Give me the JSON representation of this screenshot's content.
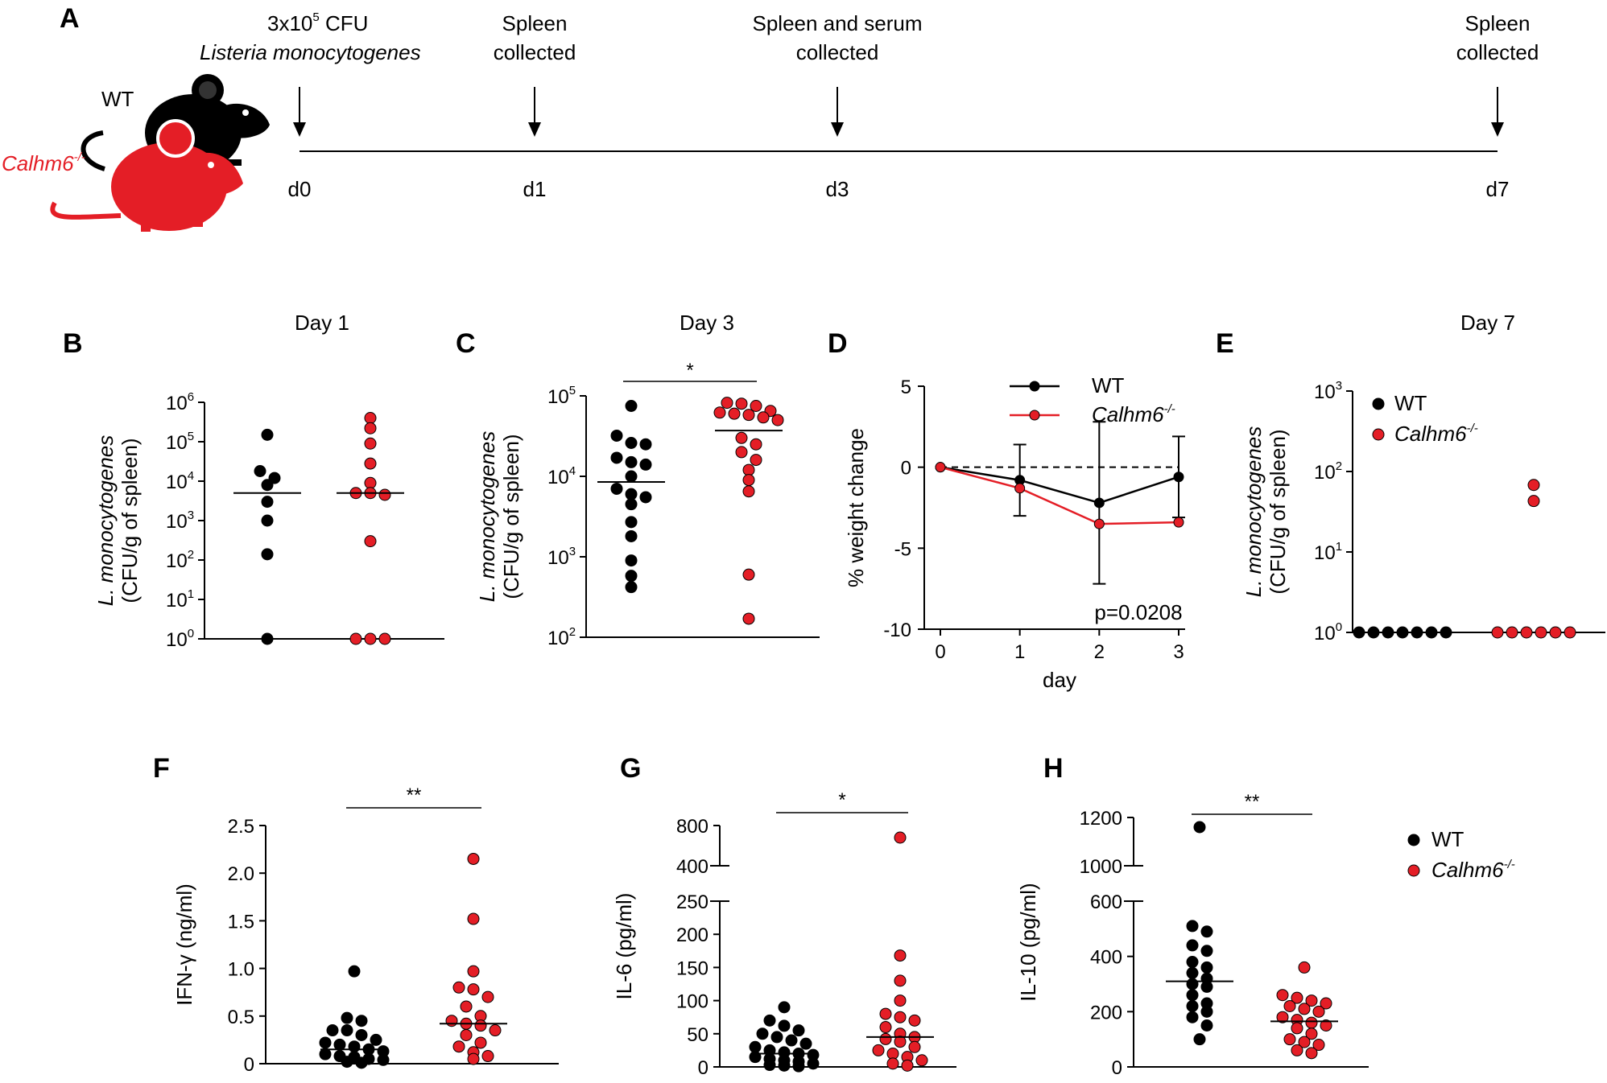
{
  "colors": {
    "wt": "#000000",
    "ko": "#e41e26",
    "dot_outline": "#000000"
  },
  "panel_a": {
    "letter": "A",
    "wt_label": "WT",
    "ko_label": "Calhm6",
    "ko_sup": "-/-",
    "mouse_icons": [
      "mouse-black-icon",
      "mouse-red-icon"
    ],
    "inoculum_line1_base": "3x10",
    "inoculum_line1_sup": "5",
    "inoculum_line1_rest": " CFU",
    "inoculum_line2": "Listeria monocytogenes",
    "events": [
      {
        "day": "d0",
        "label_lines": []
      },
      {
        "day": "d1",
        "label_lines": [
          "Spleen",
          "collected"
        ]
      },
      {
        "day": "d3",
        "label_lines": [
          "Spleen and serum",
          "collected"
        ]
      },
      {
        "day": "d7",
        "label_lines": [
          "Spleen",
          "collected"
        ]
      }
    ]
  },
  "chart_data": [
    {
      "panel": "B",
      "type": "scatter",
      "title": "Day 1",
      "ylabel_line1": "L. monocytogenes",
      "ylabel_line2": "(CFU/g of spleen)",
      "yscale": "log",
      "ylim": [
        1,
        1000000
      ],
      "yticks": [
        {
          "base": "10",
          "exp": "0"
        },
        {
          "base": "10",
          "exp": "1"
        },
        {
          "base": "10",
          "exp": "2"
        },
        {
          "base": "10",
          "exp": "3"
        },
        {
          "base": "10",
          "exp": "4"
        },
        {
          "base": "10",
          "exp": "5"
        },
        {
          "base": "10",
          "exp": "6"
        }
      ],
      "groups": [
        {
          "name": "WT",
          "values": [
            150000,
            18000,
            12000,
            8000,
            3000,
            1000,
            140,
            1
          ],
          "median": 5000
        },
        {
          "name": "Calhm6-/-",
          "values": [
            400000,
            220000,
            90000,
            28000,
            9000,
            5000,
            5000,
            4500,
            300,
            1,
            1,
            1
          ],
          "median": 5000
        }
      ]
    },
    {
      "panel": "C",
      "type": "scatter",
      "title": "Day 3",
      "ylabel_line1": "L. monocytogenes",
      "ylabel_line2": "(CFU/g of spleen)",
      "yscale": "log",
      "ylim": [
        100,
        100000
      ],
      "yticks": [
        {
          "base": "10",
          "exp": "2"
        },
        {
          "base": "10",
          "exp": "3"
        },
        {
          "base": "10",
          "exp": "4"
        },
        {
          "base": "10",
          "exp": "5"
        }
      ],
      "significance": "*",
      "groups": [
        {
          "name": "WT",
          "values": [
            75000,
            32000,
            26000,
            25000,
            17000,
            15000,
            14000,
            10000,
            7000,
            6000,
            5500,
            4500,
            2700,
            1800,
            900,
            580,
            420
          ],
          "median": 8500
        },
        {
          "name": "Calhm6-/-",
          "values": [
            82000,
            80000,
            75000,
            65000,
            62000,
            60000,
            58000,
            54000,
            50000,
            30000,
            25000,
            20000,
            16000,
            12000,
            9000,
            6500,
            600,
            170
          ],
          "median": 37000
        }
      ]
    },
    {
      "panel": "D",
      "type": "line",
      "xlabel": "day",
      "ylabel": "% weight change",
      "xlim": [
        0,
        3
      ],
      "ylim": [
        -10,
        5
      ],
      "x": [
        0,
        1,
        2,
        3
      ],
      "yticks": [
        "-10",
        "-5",
        "0",
        "5"
      ],
      "xticks": [
        "0",
        "1",
        "2",
        "3"
      ],
      "legend": "top-center",
      "annotation": "p=0.0208",
      "series": [
        {
          "name": "WT",
          "values": [
            0,
            -0.8,
            -2.2,
            -0.6
          ],
          "error": [
            0,
            2.2,
            5.0,
            2.5
          ]
        },
        {
          "name": "Calhm6",
          "name_sup": "-/-",
          "values": [
            0,
            -1.3,
            -3.5,
            -3.4
          ],
          "error": [
            0,
            0,
            0,
            0
          ]
        }
      ]
    },
    {
      "panel": "E",
      "type": "scatter",
      "title": "Day 7",
      "ylabel_line1": "L. monocytogenes",
      "ylabel_line2": "(CFU/g of spleen)",
      "yscale": "log",
      "ylim": [
        1,
        1000
      ],
      "yticks": [
        {
          "base": "10",
          "exp": "0"
        },
        {
          "base": "10",
          "exp": "1"
        },
        {
          "base": "10",
          "exp": "2"
        },
        {
          "base": "10",
          "exp": "3"
        }
      ],
      "legend": "top-left",
      "legend_entries": [
        {
          "name": "WT",
          "sup": ""
        },
        {
          "name": "Calhm6",
          "sup": "-/-"
        }
      ],
      "groups": [
        {
          "name": "WT",
          "values": [
            1,
            1,
            1,
            1,
            1,
            1,
            1
          ]
        },
        {
          "name": "Calhm6-/-",
          "values": [
            68,
            43,
            1,
            1,
            1,
            1,
            1,
            1
          ]
        }
      ]
    },
    {
      "panel": "F",
      "type": "scatter",
      "ylabel": "IFN-γ (ng/ml)",
      "ylim": [
        0,
        2.5
      ],
      "yticks": [
        "0",
        "0.5",
        "1.0",
        "1.5",
        "2.0",
        "2.5"
      ],
      "significance": "**",
      "groups": [
        {
          "name": "WT",
          "values": [
            0.97,
            0.48,
            0.45,
            0.35,
            0.35,
            0.3,
            0.25,
            0.22,
            0.2,
            0.18,
            0.15,
            0.13,
            0.1,
            0.08,
            0.07,
            0.05,
            0.04,
            0.02,
            0.01
          ],
          "median": 0.15
        },
        {
          "name": "Calhm6-/-",
          "values": [
            2.15,
            1.52,
            0.97,
            0.8,
            0.78,
            0.7,
            0.6,
            0.5,
            0.45,
            0.42,
            0.4,
            0.35,
            0.3,
            0.22,
            0.18,
            0.12,
            0.08,
            0.05
          ],
          "median": 0.42
        }
      ]
    },
    {
      "panel": "G",
      "type": "scatter",
      "ylabel": "IL-6 (pg/ml)",
      "ylim": [
        0,
        800
      ],
      "axis_break": [
        250,
        400
      ],
      "yticks": [
        "0",
        "50",
        "100",
        "150",
        "200",
        "250",
        "400",
        "800"
      ],
      "significance": "*",
      "groups": [
        {
          "name": "WT",
          "values": [
            90,
            70,
            62,
            55,
            50,
            45,
            40,
            35,
            30,
            25,
            22,
            20,
            18,
            15,
            12,
            10,
            8,
            5,
            3,
            2,
            1
          ],
          "median": 20
        },
        {
          "name": "Calhm6-/-",
          "values": [
            680,
            168,
            130,
            100,
            80,
            75,
            70,
            60,
            50,
            45,
            42,
            38,
            30,
            25,
            20,
            15,
            10,
            5,
            2
          ],
          "median": 45
        }
      ]
    },
    {
      "panel": "H",
      "type": "scatter",
      "ylabel": "IL-10 (pg/ml)",
      "ylim": [
        0,
        1200
      ],
      "axis_break": [
        600,
        1000
      ],
      "yticks": [
        "0",
        "200",
        "400",
        "600",
        "1000",
        "1200"
      ],
      "significance": "**",
      "legend": "right",
      "legend_entries": [
        {
          "name": "WT",
          "sup": ""
        },
        {
          "name": "Calhm6",
          "sup": "-/-"
        }
      ],
      "groups": [
        {
          "name": "WT",
          "values": [
            1160,
            510,
            490,
            440,
            420,
            380,
            360,
            340,
            320,
            300,
            290,
            260,
            230,
            220,
            200,
            180,
            150,
            100
          ],
          "median": 310
        },
        {
          "name": "Calhm6-/-",
          "values": [
            360,
            260,
            250,
            240,
            230,
            220,
            210,
            200,
            180,
            170,
            160,
            150,
            140,
            120,
            100,
            90,
            80,
            60,
            50
          ],
          "median": 165
        }
      ]
    }
  ]
}
